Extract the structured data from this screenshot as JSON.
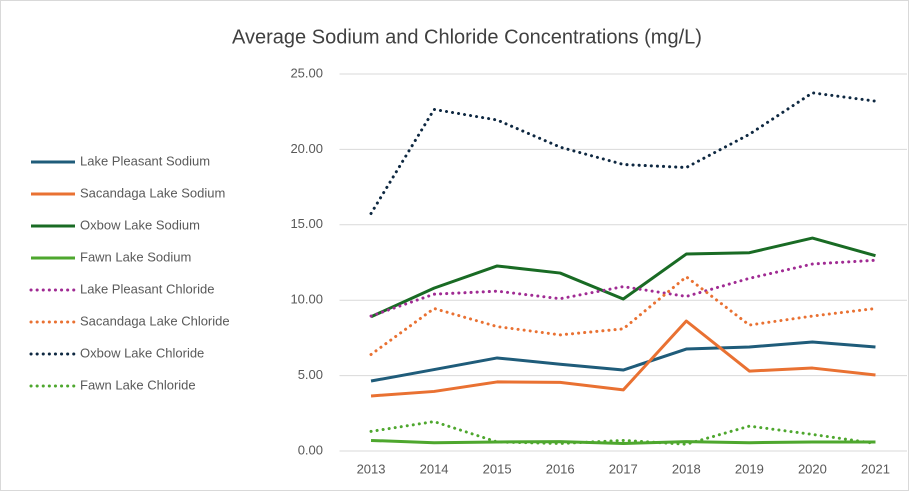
{
  "chart_data": {
    "type": "line",
    "title": "Average Sodium and Chloride Concentrations (mg/L)",
    "categories": [
      "2013",
      "2014",
      "2015",
      "2016",
      "2017",
      "2018",
      "2019",
      "2020",
      "2021"
    ],
    "series": [
      {
        "name": "Lake Pleasant Sodium",
        "color": "#1f5c7a",
        "dash": "solid",
        "values": [
          4.64,
          5.4,
          6.17,
          5.75,
          5.37,
          6.76,
          6.9,
          7.23,
          6.9
        ]
      },
      {
        "name": "Sacandaga Lake Sodium",
        "color": "#e97132",
        "dash": "solid",
        "values": [
          3.65,
          3.95,
          4.58,
          4.55,
          4.05,
          8.62,
          5.3,
          5.5,
          5.04
        ]
      },
      {
        "name": "Oxbow Lake Sodium",
        "color": "#196b24",
        "dash": "solid",
        "values": [
          8.9,
          10.8,
          12.27,
          11.8,
          10.08,
          13.06,
          13.15,
          14.12,
          12.95
        ]
      },
      {
        "name": "Fawn Lake Sodium",
        "color": "#4ea72e",
        "dash": "solid",
        "values": [
          0.7,
          0.55,
          0.6,
          0.62,
          0.5,
          0.62,
          0.55,
          0.6,
          0.6
        ]
      },
      {
        "name": "Lake Pleasant Chloride",
        "color": "#a02b93",
        "dash": "dotted",
        "values": [
          8.95,
          10.4,
          10.6,
          10.1,
          10.9,
          10.25,
          11.45,
          12.4,
          12.65
        ]
      },
      {
        "name": "Sacandaga Lake Chloride",
        "color": "#e97132",
        "dash": "dotted",
        "values": [
          6.4,
          9.45,
          8.25,
          7.7,
          8.1,
          11.55,
          8.35,
          8.95,
          9.45
        ]
      },
      {
        "name": "Oxbow Lake Chloride",
        "color": "#0e2841",
        "dash": "dotted",
        "values": [
          15.75,
          22.65,
          21.95,
          20.15,
          19.0,
          18.8,
          21.0,
          23.75,
          23.2
        ]
      },
      {
        "name": "Fawn Lake Chloride",
        "color": "#4ea72e",
        "dash": "dotted",
        "values": [
          1.3,
          1.95,
          0.6,
          0.5,
          0.7,
          0.45,
          1.65,
          1.1,
          0.5
        ]
      }
    ],
    "ylim": [
      0,
      25
    ],
    "yticks": [
      {
        "value": 0,
        "label": "0.00"
      },
      {
        "value": 5,
        "label": "5.00"
      },
      {
        "value": 10,
        "label": "10.00"
      },
      {
        "value": 15,
        "label": "15.00"
      },
      {
        "value": 20,
        "label": "20.00"
      },
      {
        "value": 25,
        "label": "25.00"
      }
    ],
    "grid": true,
    "legend": "left"
  }
}
